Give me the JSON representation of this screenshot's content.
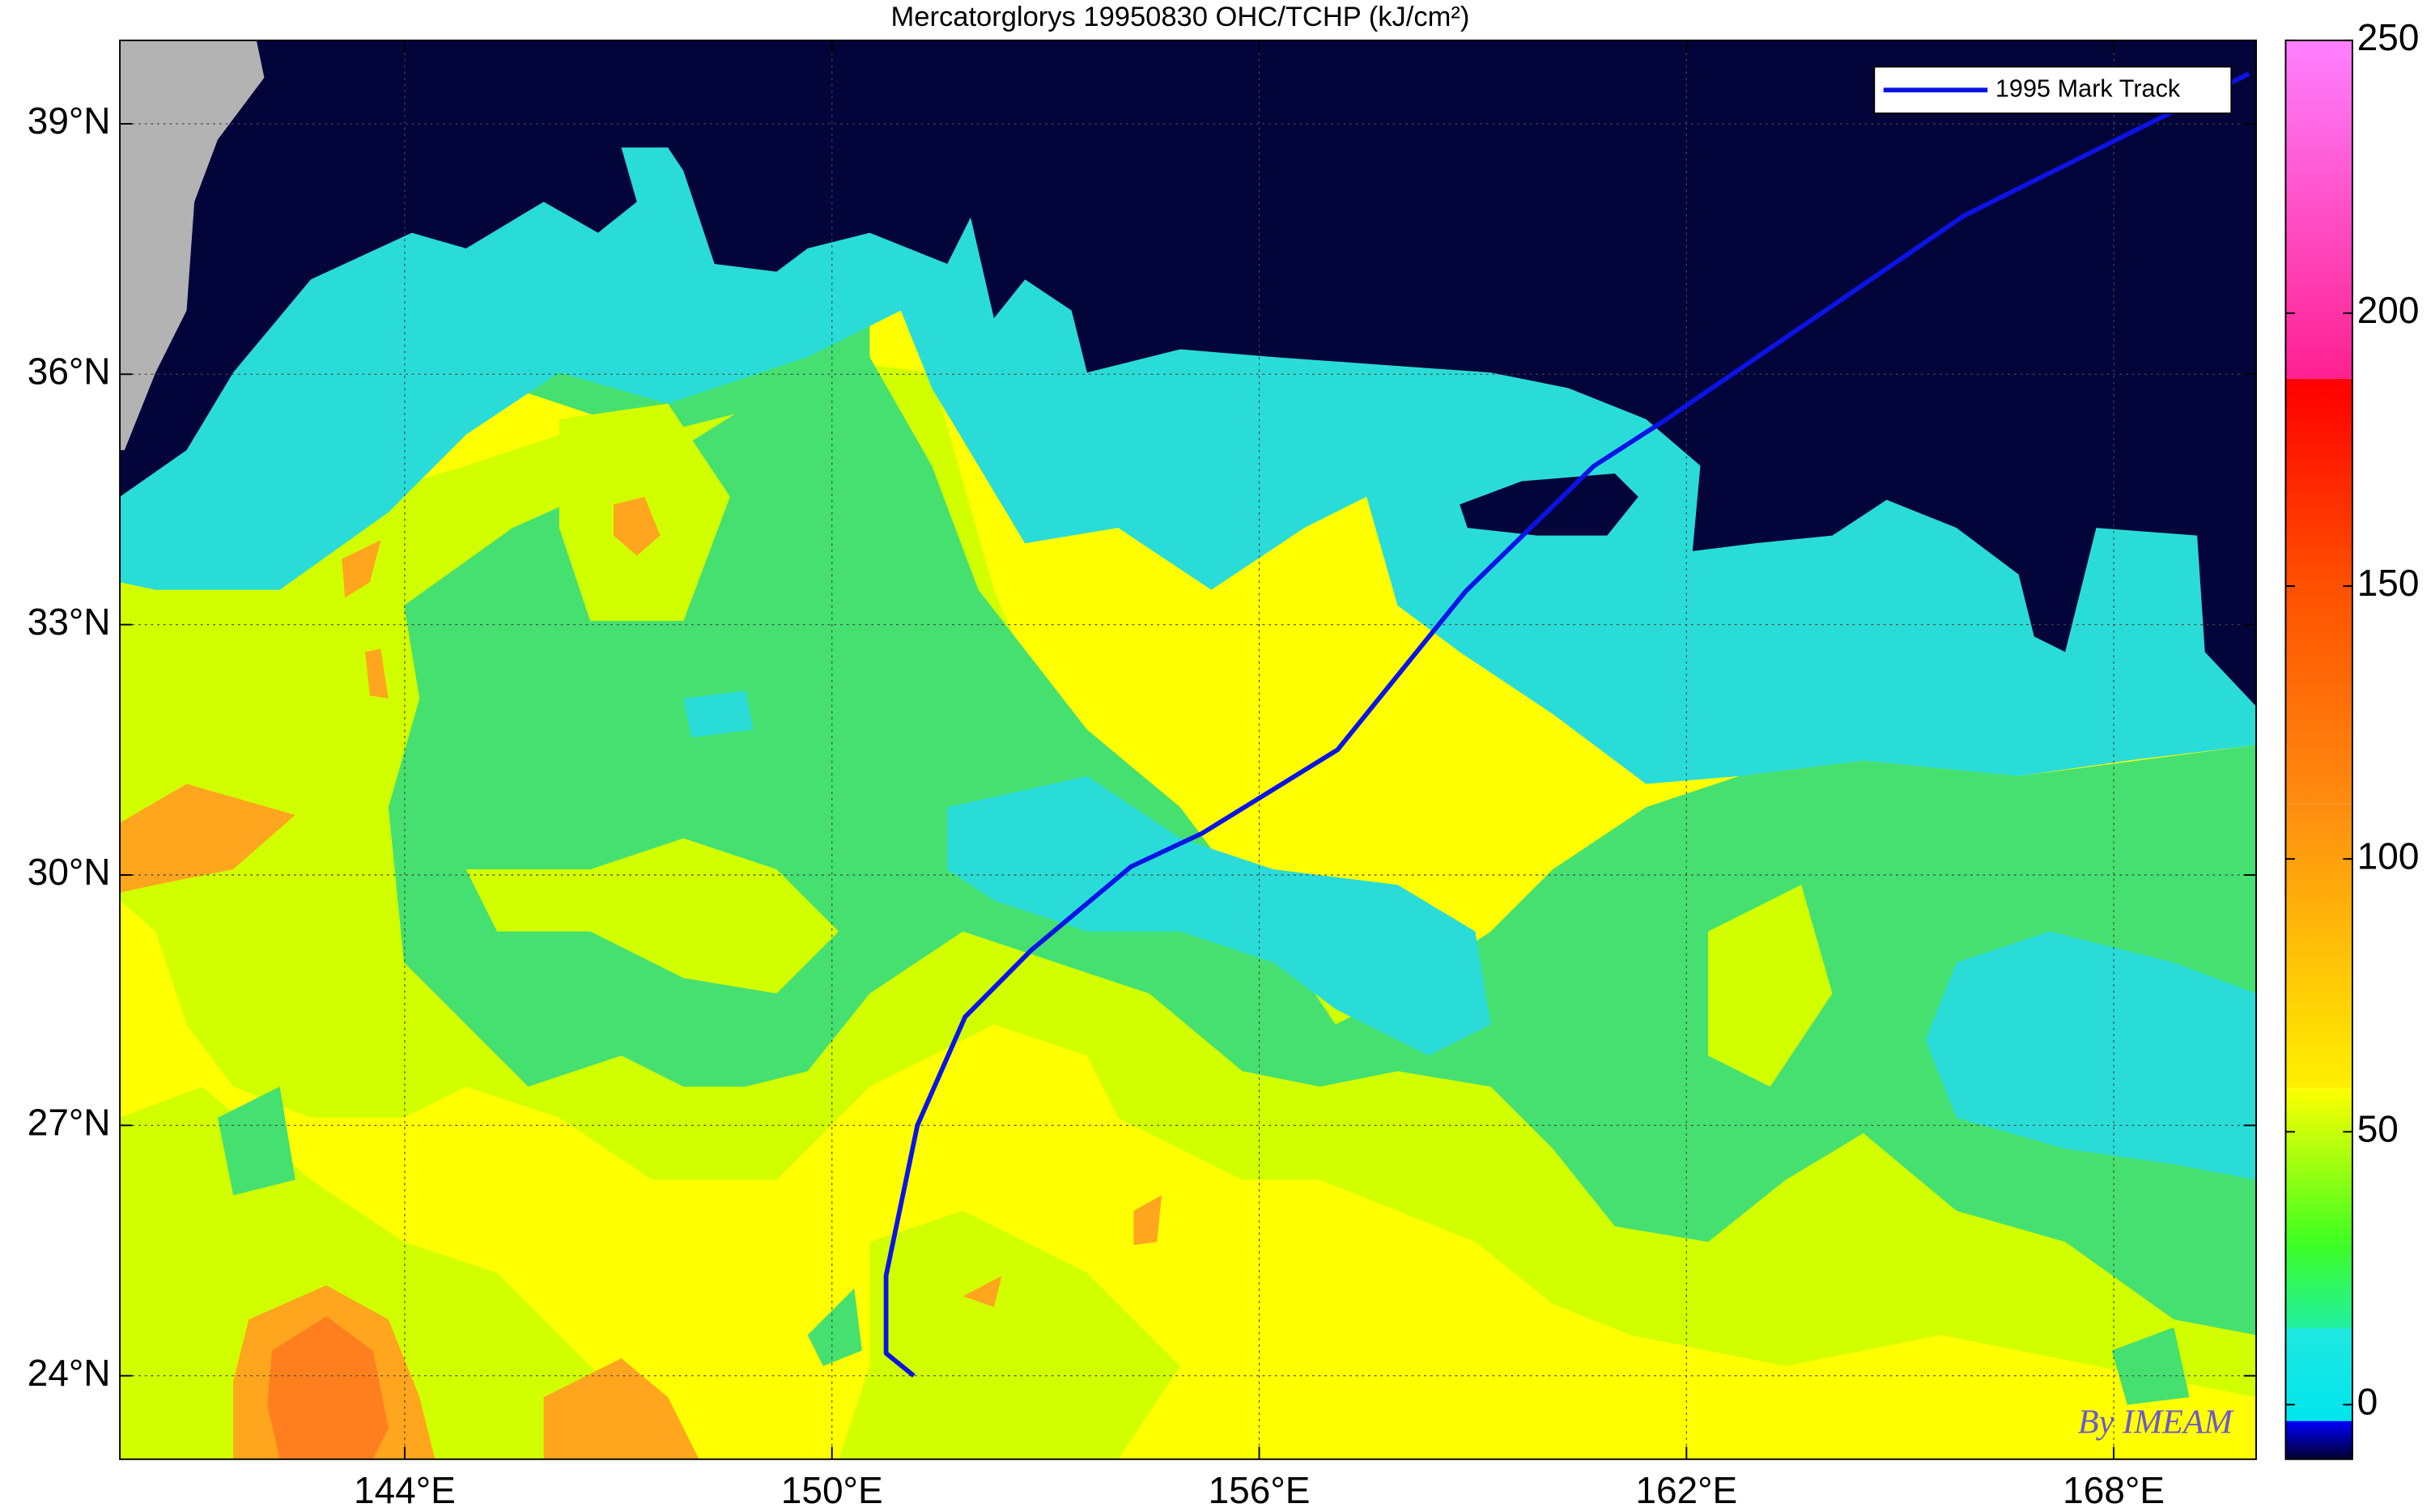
{
  "chart_data": {
    "type": "line",
    "title": "Mercatorglorys 19950830 OHC/TCHP (kJ/cm²)",
    "xlim": [
      140,
      170
    ],
    "ylim": [
      23,
      40
    ],
    "xticks": [
      {
        "value": 144,
        "label": "144°E"
      },
      {
        "value": 150,
        "label": "150°E"
      },
      {
        "value": 156,
        "label": "156°E"
      },
      {
        "value": 162,
        "label": "162°E"
      },
      {
        "value": 168,
        "label": "168°E"
      }
    ],
    "yticks": [
      {
        "value": 24,
        "label": "24°N"
      },
      {
        "value": 27,
        "label": "27°N"
      },
      {
        "value": 30,
        "label": "30°N"
      },
      {
        "value": 33,
        "label": "33°N"
      },
      {
        "value": 36,
        "label": "36°N"
      },
      {
        "value": 39,
        "label": "39°N"
      }
    ],
    "grid": true,
    "legend": "upper right",
    "series": [
      {
        "name": "1995 Mark Track",
        "color": "#0a14e6",
        "x": [
          151.15,
          150.76,
          150.76,
          151.2,
          151.87,
          152.8,
          154.2,
          155.2,
          157.1,
          158.9,
          160.7,
          161.7,
          165.9,
          169.9
        ],
        "values": [
          24.0,
          24.27,
          25.2,
          27.0,
          28.3,
          29.1,
          30.1,
          30.5,
          31.5,
          33.4,
          34.9,
          35.45,
          37.9,
          39.6
        ]
      }
    ],
    "colorbar": {
      "lim": [
        -10,
        250
      ],
      "ticks": [
        0,
        50,
        100,
        150,
        200,
        250
      ],
      "colormap": [
        {
          "value": -10,
          "color": "#00002e"
        },
        {
          "value": -3,
          "color": "#0000ff"
        },
        {
          "value": -3,
          "color": "#00e5ee"
        },
        {
          "value": 14,
          "color": "#20e8e0"
        },
        {
          "value": 14,
          "color": "#20f0a0"
        },
        {
          "value": 30,
          "color": "#40ff20"
        },
        {
          "value": 58,
          "color": "#ffff00"
        },
        {
          "value": 58,
          "color": "#fff000"
        },
        {
          "value": 110,
          "color": "#ff8c10"
        },
        {
          "value": 150,
          "color": "#ff5000"
        },
        {
          "value": 188,
          "color": "#ff0000"
        },
        {
          "value": 188,
          "color": "#ff2090"
        },
        {
          "value": 250,
          "color": "#ff80ff"
        }
      ]
    },
    "credit": "By IMEAM"
  }
}
